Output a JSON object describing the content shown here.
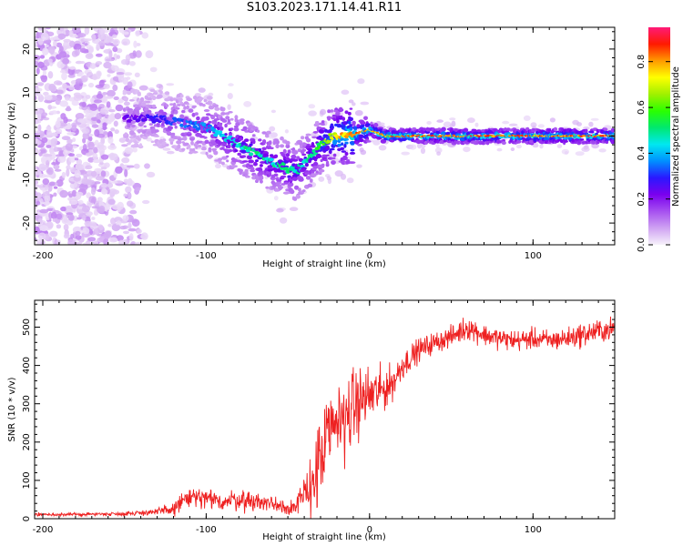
{
  "title": "S103.2023.171.14.41.R11",
  "chart_data": [
    {
      "type": "heatmap",
      "title": "S103.2023.171.14.41.R11",
      "xlabel": "Height of straight line (km)",
      "ylabel": "Frequency (Hz)",
      "xlim": [
        -205,
        150
      ],
      "ylim": [
        -25,
        25
      ],
      "xticks": [
        -200,
        -100,
        0,
        100
      ],
      "yticks": [
        -20,
        -10,
        0,
        10,
        20
      ],
      "colorbar": {
        "label": "Normalized spectral amplitude",
        "range": [
          0,
          0.95
        ],
        "ticks": [
          "0.0",
          "0.2",
          "0.4",
          "0.6",
          "0.8"
        ],
        "colormap": [
          "#f7f2fb",
          "#cfa2f2",
          "#a650f0",
          "#7a00ee",
          "#2a18ff",
          "#0090ff",
          "#00e8f0",
          "#00e870",
          "#2aff00",
          "#a0f000",
          "#ffff00",
          "#ff9a00",
          "#ff1a00",
          "#ff1a78"
        ]
      },
      "ridge": {
        "x": [
          -145,
          -130,
          -115,
          -100,
          -90,
          -80,
          -70,
          -60,
          -50,
          -45,
          -40,
          -35,
          -30,
          -25,
          -20,
          -15,
          -10,
          -5,
          0,
          10,
          30,
          60,
          90,
          120,
          150
        ],
        "frequency": [
          4.0,
          4.0,
          3.0,
          2.0,
          0.0,
          -2.0,
          -4.0,
          -6.0,
          -7.5,
          -8.0,
          -6.5,
          -4.5,
          -2.0,
          -0.5,
          0.0,
          0.2,
          0.3,
          1.0,
          1.5,
          0.0,
          0.0,
          0.0,
          0.0,
          0.0,
          0.0
        ],
        "amplitude": [
          0.25,
          0.3,
          0.35,
          0.4,
          0.45,
          0.5,
          0.55,
          0.5,
          0.55,
          0.5,
          0.5,
          0.55,
          0.6,
          0.7,
          0.8,
          0.85,
          0.9,
          0.85,
          0.8,
          0.9,
          0.9,
          0.9,
          0.9,
          0.9,
          0.9
        ]
      }
    },
    {
      "type": "line",
      "xlabel": "Height of straight line (km)",
      "ylabel": "SNR (10 * v/v)",
      "xlim": [
        -205,
        150
      ],
      "ylim": [
        0,
        570
      ],
      "xticks": [
        -200,
        -100,
        0,
        100
      ],
      "yticks": [
        0,
        100,
        200,
        300,
        400,
        500
      ],
      "color": "#ee2020",
      "series": [
        {
          "name": "SNR",
          "x": [
            -205,
            -190,
            -170,
            -150,
            -130,
            -120,
            -115,
            -110,
            -100,
            -90,
            -80,
            -70,
            -60,
            -50,
            -45,
            -40,
            -35,
            -30,
            -25,
            -20,
            -15,
            -10,
            -5,
            0,
            5,
            10,
            15,
            20,
            25,
            30,
            40,
            50,
            60,
            70,
            80,
            90,
            100,
            110,
            120,
            130,
            140,
            150
          ],
          "values": [
            12,
            10,
            12,
            13,
            18,
            25,
            45,
            55,
            50,
            45,
            50,
            45,
            40,
            30,
            30,
            60,
            100,
            150,
            210,
            250,
            270,
            290,
            310,
            320,
            330,
            340,
            360,
            400,
            420,
            440,
            460,
            475,
            500,
            480,
            470,
            465,
            470,
            465,
            470,
            480,
            490,
            495
          ],
          "noise_amplitude": [
            4,
            4,
            4,
            5,
            8,
            18,
            25,
            28,
            26,
            24,
            26,
            24,
            22,
            20,
            25,
            50,
            90,
            110,
            120,
            110,
            100,
            90,
            80,
            70,
            60,
            50,
            40,
            35,
            30,
            28,
            25,
            25,
            30,
            25,
            25,
            25,
            25,
            25,
            25,
            28,
            28,
            28
          ]
        }
      ]
    }
  ]
}
